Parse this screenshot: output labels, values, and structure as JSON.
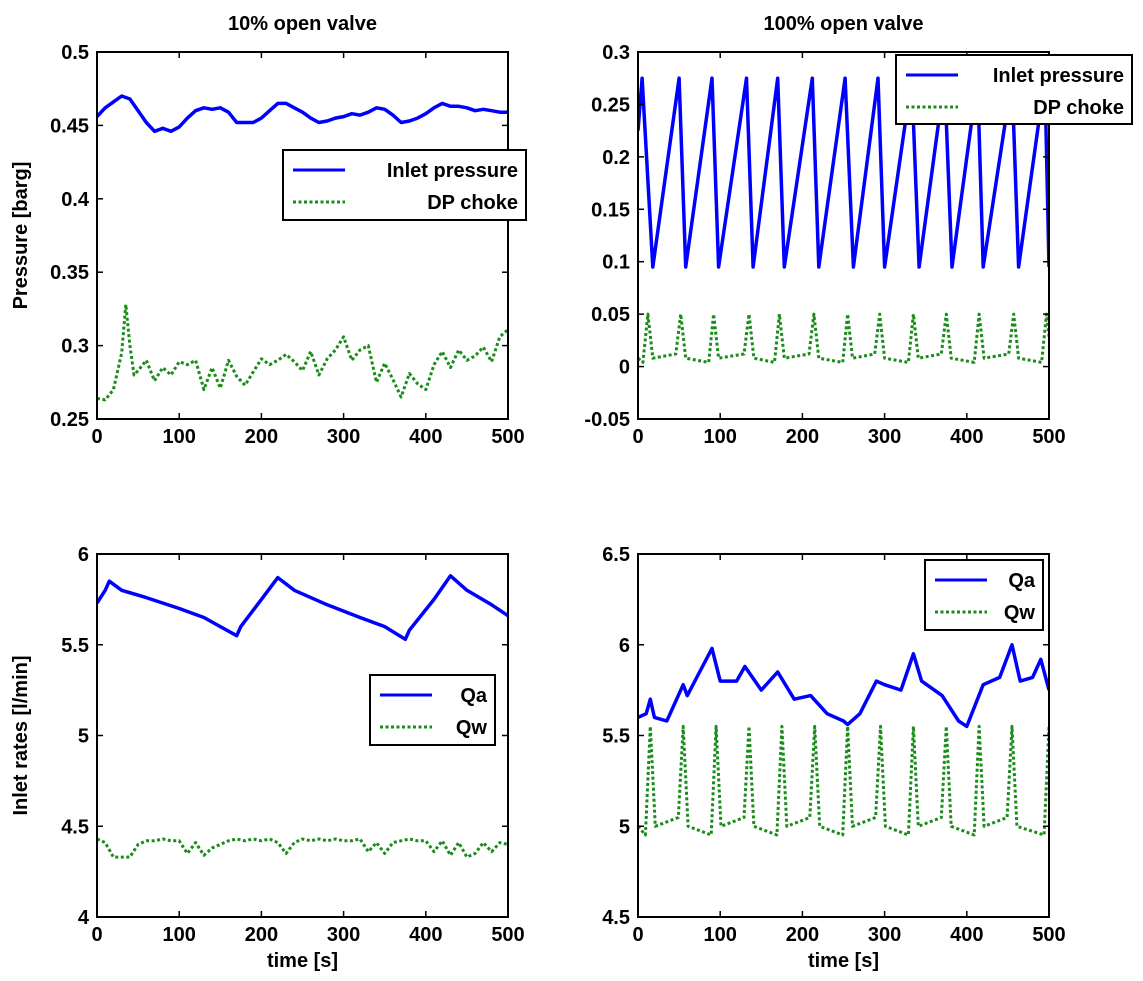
{
  "figure": {
    "background": "#ffffff"
  },
  "colors": {
    "inlet": "#0000ff",
    "dp": "#1a8c1a",
    "axis": "#000000"
  },
  "chart_data": [
    {
      "type": "line",
      "title": "10% open valve",
      "xlabel": "",
      "ylabel": "Pressure [barg]",
      "xlim": [
        0,
        500
      ],
      "ylim": [
        0.25,
        0.5
      ],
      "xticks": [
        "0",
        "100",
        "200",
        "300",
        "400",
        "500"
      ],
      "xtick_values": [
        0,
        100,
        200,
        300,
        400,
        500
      ],
      "yticks": [
        "0.25",
        "0.3",
        "0.35",
        "0.4",
        "0.45",
        "0.5"
      ],
      "ytick_values": [
        0.25,
        0.3,
        0.35,
        0.4,
        0.45,
        0.5
      ],
      "grid": false,
      "legend_position": "middle-right",
      "series": [
        {
          "name": "Inlet pressure",
          "style": "solid",
          "color": "#0000ff",
          "x": [
            0,
            10,
            20,
            30,
            40,
            50,
            60,
            70,
            80,
            90,
            100,
            110,
            120,
            130,
            140,
            150,
            160,
            170,
            180,
            190,
            200,
            210,
            220,
            230,
            240,
            250,
            260,
            270,
            280,
            290,
            300,
            310,
            320,
            330,
            340,
            350,
            360,
            370,
            380,
            390,
            400,
            410,
            420,
            430,
            440,
            450,
            460,
            470,
            480,
            490,
            500
          ],
          "y": [
            0.456,
            0.462,
            0.466,
            0.47,
            0.468,
            0.46,
            0.452,
            0.446,
            0.448,
            0.446,
            0.449,
            0.455,
            0.46,
            0.462,
            0.461,
            0.462,
            0.459,
            0.452,
            0.452,
            0.452,
            0.455,
            0.46,
            0.465,
            0.465,
            0.462,
            0.459,
            0.455,
            0.452,
            0.453,
            0.455,
            0.456,
            0.458,
            0.457,
            0.459,
            0.462,
            0.461,
            0.457,
            0.452,
            0.453,
            0.455,
            0.458,
            0.462,
            0.465,
            0.463,
            0.463,
            0.462,
            0.46,
            0.461,
            0.46,
            0.459,
            0.459
          ]
        },
        {
          "name": "DP choke",
          "style": "dotted",
          "color": "#1a8c1a",
          "x": [
            0,
            10,
            20,
            30,
            35,
            40,
            45,
            50,
            60,
            70,
            80,
            90,
            100,
            110,
            120,
            130,
            140,
            150,
            160,
            170,
            180,
            190,
            200,
            210,
            220,
            230,
            240,
            250,
            260,
            270,
            280,
            290,
            300,
            310,
            320,
            330,
            340,
            350,
            360,
            370,
            380,
            390,
            400,
            410,
            420,
            430,
            440,
            450,
            460,
            470,
            480,
            490,
            500
          ],
          "y": [
            0.264,
            0.263,
            0.27,
            0.295,
            0.328,
            0.3,
            0.28,
            0.283,
            0.29,
            0.276,
            0.285,
            0.28,
            0.289,
            0.287,
            0.29,
            0.27,
            0.285,
            0.271,
            0.29,
            0.279,
            0.273,
            0.282,
            0.291,
            0.287,
            0.29,
            0.294,
            0.289,
            0.283,
            0.296,
            0.28,
            0.291,
            0.297,
            0.306,
            0.29,
            0.297,
            0.3,
            0.275,
            0.288,
            0.277,
            0.265,
            0.281,
            0.274,
            0.27,
            0.287,
            0.296,
            0.285,
            0.297,
            0.29,
            0.293,
            0.299,
            0.289,
            0.306,
            0.311
          ]
        }
      ]
    },
    {
      "type": "line",
      "title": "100% open valve",
      "xlabel": "",
      "ylabel": "",
      "xlim": [
        0,
        500
      ],
      "ylim": [
        -0.05,
        0.3
      ],
      "xticks": [
        "0",
        "100",
        "200",
        "300",
        "400",
        "500"
      ],
      "xtick_values": [
        0,
        100,
        200,
        300,
        400,
        500
      ],
      "yticks": [
        "-0.05",
        "0",
        "0.05",
        "0.1",
        "0.15",
        "0.2",
        "0.25",
        "0.3"
      ],
      "ytick_values": [
        -0.05,
        0,
        0.05,
        0.1,
        0.15,
        0.2,
        0.25,
        0.3
      ],
      "grid": false,
      "legend_position": "top-right",
      "series": [
        {
          "name": "Inlet pressure",
          "style": "solid",
          "color": "#0000ff",
          "peaks_x": [
            5,
            50,
            90,
            132,
            170,
            212,
            252,
            292,
            333,
            373,
            413,
            455,
            495
          ],
          "troughs_x": [
            18,
            58,
            98,
            140,
            178,
            220,
            262,
            300,
            342,
            382,
            420,
            463,
            500
          ],
          "peak_y": 0.275,
          "trough_y": 0.095
        },
        {
          "name": "DP choke",
          "style": "dotted",
          "color": "#1a8c1a",
          "peaks_x": [
            12,
            52,
            92,
            135,
            172,
            214,
            255,
            294,
            335,
            375,
            415,
            457,
            497
          ],
          "peak_y": 0.05,
          "base_y": 0.008
        }
      ]
    },
    {
      "type": "line",
      "title": "",
      "xlabel": "time [s]",
      "ylabel": "Inlet rates [l/min]",
      "xlim": [
        0,
        500
      ],
      "ylim": [
        4,
        6
      ],
      "xticks": [
        "0",
        "100",
        "200",
        "300",
        "400",
        "500"
      ],
      "xtick_values": [
        0,
        100,
        200,
        300,
        400,
        500
      ],
      "yticks": [
        "4",
        "4.5",
        "5",
        "5.5",
        "6"
      ],
      "ytick_values": [
        4,
        4.5,
        5,
        5.5,
        6
      ],
      "grid": false,
      "legend_position": "middle-right",
      "series": [
        {
          "name": "Qa",
          "style": "solid",
          "color": "#0000ff",
          "x": [
            0,
            10,
            15,
            30,
            60,
            100,
            130,
            150,
            170,
            175,
            200,
            220,
            240,
            280,
            320,
            350,
            375,
            380,
            410,
            430,
            450,
            480,
            500
          ],
          "y": [
            5.73,
            5.8,
            5.85,
            5.8,
            5.76,
            5.7,
            5.65,
            5.6,
            5.55,
            5.6,
            5.75,
            5.87,
            5.8,
            5.72,
            5.65,
            5.6,
            5.53,
            5.58,
            5.75,
            5.88,
            5.8,
            5.72,
            5.66
          ]
        },
        {
          "name": "Qw",
          "style": "dotted",
          "color": "#1a8c1a",
          "x": [
            0,
            10,
            20,
            30,
            40,
            50,
            60,
            70,
            80,
            90,
            100,
            110,
            120,
            130,
            140,
            150,
            160,
            170,
            180,
            190,
            200,
            210,
            220,
            230,
            240,
            250,
            260,
            270,
            280,
            290,
            300,
            310,
            320,
            330,
            340,
            350,
            360,
            370,
            380,
            390,
            400,
            410,
            420,
            430,
            440,
            450,
            460,
            470,
            480,
            490,
            500
          ],
          "y": [
            4.43,
            4.41,
            4.33,
            4.33,
            4.33,
            4.4,
            4.42,
            4.42,
            4.43,
            4.42,
            4.42,
            4.35,
            4.41,
            4.34,
            4.38,
            4.4,
            4.42,
            4.43,
            4.42,
            4.43,
            4.42,
            4.43,
            4.41,
            4.35,
            4.41,
            4.43,
            4.42,
            4.43,
            4.42,
            4.43,
            4.42,
            4.42,
            4.43,
            4.36,
            4.41,
            4.35,
            4.41,
            4.42,
            4.43,
            4.42,
            4.42,
            4.36,
            4.42,
            4.34,
            4.41,
            4.33,
            4.35,
            4.41,
            4.36,
            4.41,
            4.4
          ]
        }
      ]
    },
    {
      "type": "line",
      "title": "",
      "xlabel": "time [s]",
      "ylabel": "",
      "xlim": [
        0,
        500
      ],
      "ylim": [
        4.5,
        6.5
      ],
      "xticks": [
        "0",
        "100",
        "200",
        "300",
        "400",
        "500"
      ],
      "xtick_values": [
        0,
        100,
        200,
        300,
        400,
        500
      ],
      "yticks": [
        "4.5",
        "5",
        "5.5",
        "6",
        "6.5"
      ],
      "ytick_values": [
        4.5,
        5,
        5.5,
        6,
        6.5
      ],
      "grid": false,
      "legend_position": "top-right",
      "series": [
        {
          "name": "Qa",
          "style": "solid",
          "color": "#0000ff",
          "x": [
            0,
            10,
            15,
            20,
            35,
            55,
            60,
            75,
            90,
            100,
            120,
            130,
            150,
            170,
            190,
            210,
            230,
            250,
            255,
            270,
            290,
            300,
            320,
            335,
            345,
            370,
            390,
            400,
            420,
            440,
            455,
            465,
            480,
            490,
            500
          ],
          "y": [
            5.6,
            5.62,
            5.7,
            5.6,
            5.58,
            5.78,
            5.72,
            5.85,
            5.98,
            5.8,
            5.8,
            5.88,
            5.75,
            5.85,
            5.7,
            5.72,
            5.62,
            5.58,
            5.56,
            5.62,
            5.8,
            5.78,
            5.75,
            5.95,
            5.8,
            5.72,
            5.58,
            5.55,
            5.78,
            5.82,
            6.0,
            5.8,
            5.82,
            5.92,
            5.75
          ]
        },
        {
          "name": "Qw",
          "style": "dotted",
          "color": "#1a8c1a",
          "peaks_x": [
            15,
            55,
            95,
            135,
            175,
            215,
            255,
            295,
            335,
            375,
            415,
            455,
            500
          ],
          "peak_y": 5.55,
          "base_y": 5.0
        }
      ]
    }
  ]
}
